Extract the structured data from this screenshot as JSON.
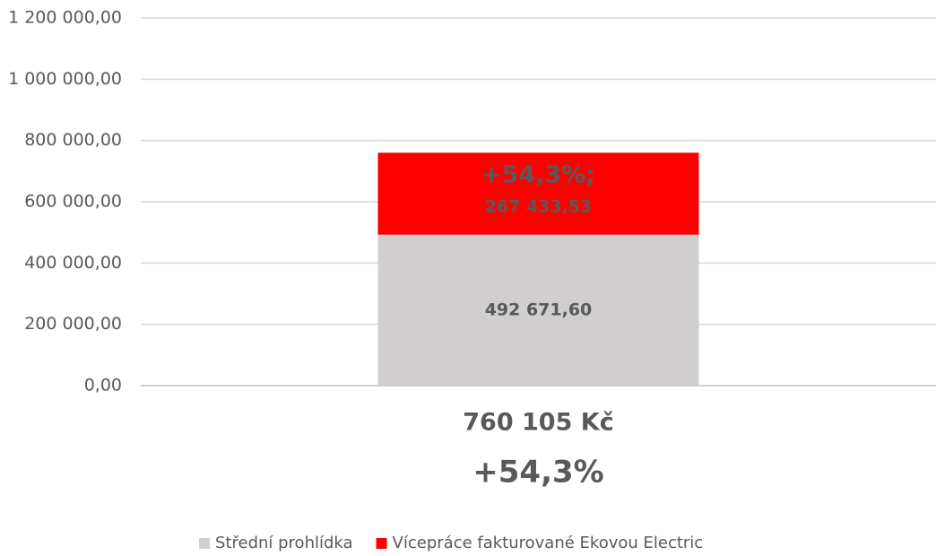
{
  "chart_data": {
    "type": "stacked_bar",
    "categories": [
      "760 105 Kč"
    ],
    "annotation": "+54,3%",
    "series": [
      {
        "name": "Střední prohlídka",
        "color": "#d0cece",
        "values": [
          492671.6
        ],
        "value_labels": [
          [
            "492 671,60"
          ]
        ]
      },
      {
        "name": "Vícepráce fakturované Ekovou Electric",
        "color": "#ff0000",
        "values": [
          267433.53
        ],
        "value_labels": [
          [
            "+54,3%;",
            "267 433,53"
          ]
        ]
      }
    ],
    "ylim": [
      0,
      1200000
    ],
    "yticks": [
      {
        "value": 0,
        "label": "0,00"
      },
      {
        "value": 200000,
        "label": "200 000,00"
      },
      {
        "value": 400000,
        "label": "400 000,00"
      },
      {
        "value": 600000,
        "label": "600 000,00"
      },
      {
        "value": 800000,
        "label": "800 000,00"
      },
      {
        "value": 1000000,
        "label": "1 000 000,00"
      },
      {
        "value": 1200000,
        "label": "1 200 000,00"
      }
    ],
    "grid": true,
    "legend": "bottom"
  }
}
